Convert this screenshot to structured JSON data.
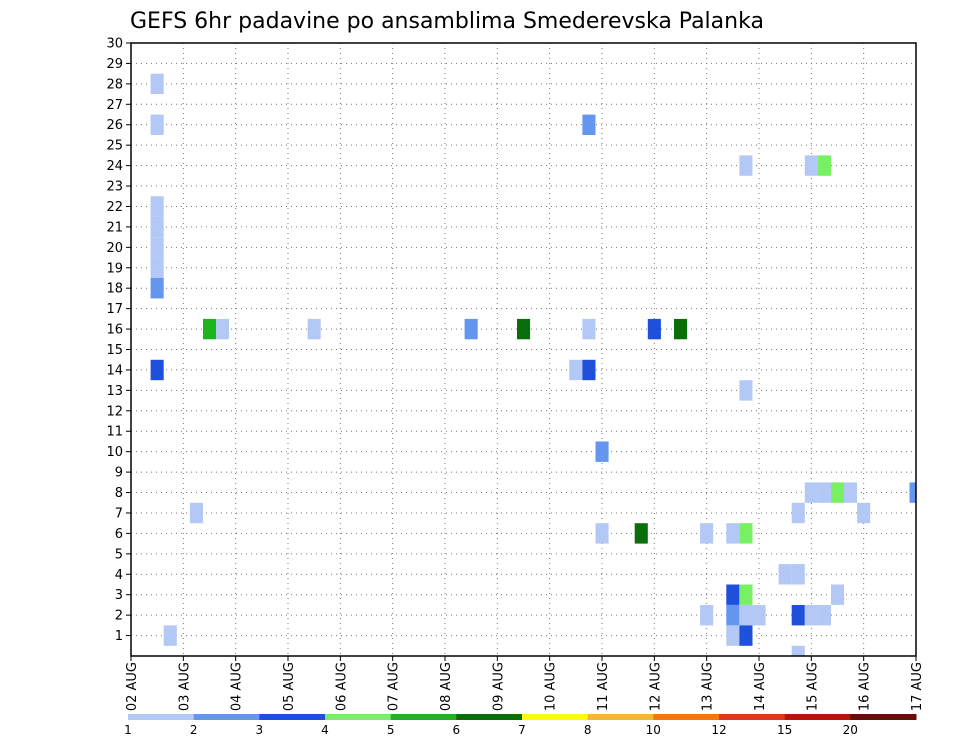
{
  "chart_data": {
    "type": "heatmap",
    "title": "GEFS 6hr padavine po ansamblima Smederevska Palanka",
    "xlabel": "",
    "ylabel": "",
    "x_tick_labels": [
      "02 AUG",
      "03 AUG",
      "04 AUG",
      "05 AUG",
      "06 AUG",
      "07 AUG",
      "08 AUG",
      "09 AUG",
      "10 AUG",
      "11 AUG",
      "12 AUG",
      "13 AUG",
      "14 AUG",
      "15 AUG",
      "16 AUG",
      "17 AUG"
    ],
    "y_tick_labels": [
      "1",
      "2",
      "3",
      "4",
      "5",
      "6",
      "7",
      "8",
      "9",
      "10",
      "11",
      "12",
      "13",
      "14",
      "15",
      "16",
      "17",
      "18",
      "19",
      "20",
      "21",
      "22",
      "23",
      "24",
      "25",
      "26",
      "27",
      "28",
      "29",
      "30"
    ],
    "xlim": [
      0,
      60
    ],
    "ylim": [
      0,
      30
    ],
    "grid": true,
    "colorbar": {
      "labels": [
        "1",
        "2",
        "3",
        "4",
        "5",
        "6",
        "7",
        "8",
        "10",
        "12",
        "15",
        "20"
      ],
      "colors": [
        "#b4c8f5",
        "#6496f0",
        "#1e50dc",
        "#78f064",
        "#1eb41e",
        "#0a6e0a",
        "#fafa14",
        "#fab43c",
        "#f07814",
        "#dc3c14",
        "#b4140a",
        "#6e0a0a"
      ]
    },
    "cells": [
      {
        "t": 2,
        "m": 28,
        "level": 1
      },
      {
        "t": 2,
        "m": 26,
        "level": 1
      },
      {
        "t": 2,
        "m": 22,
        "level": 1
      },
      {
        "t": 2,
        "m": 21,
        "level": 1
      },
      {
        "t": 2,
        "m": 20,
        "level": 1
      },
      {
        "t": 2,
        "m": 19,
        "level": 1
      },
      {
        "t": 2,
        "m": 18,
        "level": 2
      },
      {
        "t": 2,
        "m": 14,
        "level": 3
      },
      {
        "t": 3,
        "m": 1,
        "level": 1
      },
      {
        "t": 5,
        "m": 7,
        "level": 1
      },
      {
        "t": 6,
        "m": 16,
        "level": 5
      },
      {
        "t": 7,
        "m": 16,
        "level": 1
      },
      {
        "t": 14,
        "m": 16,
        "level": 1
      },
      {
        "t": 26,
        "m": 16,
        "level": 2
      },
      {
        "t": 30,
        "m": 16,
        "level": 6
      },
      {
        "t": 34,
        "m": 14,
        "level": 1
      },
      {
        "t": 35,
        "m": 26,
        "level": 2
      },
      {
        "t": 35,
        "m": 16,
        "level": 1
      },
      {
        "t": 35,
        "m": 14,
        "level": 3
      },
      {
        "t": 36,
        "m": 10,
        "level": 2
      },
      {
        "t": 36,
        "m": 6,
        "level": 1
      },
      {
        "t": 39,
        "m": 6,
        "level": 6
      },
      {
        "t": 40,
        "m": 16,
        "level": 3
      },
      {
        "t": 42,
        "m": 16,
        "level": 6
      },
      {
        "t": 44,
        "m": 6,
        "level": 1
      },
      {
        "t": 44,
        "m": 2,
        "level": 1
      },
      {
        "t": 46,
        "m": 6,
        "level": 1
      },
      {
        "t": 46,
        "m": 3,
        "level": 3
      },
      {
        "t": 46,
        "m": 2,
        "level": 2
      },
      {
        "t": 46,
        "m": 1,
        "level": 1
      },
      {
        "t": 47,
        "m": 24,
        "level": 1
      },
      {
        "t": 47,
        "m": 13,
        "level": 1
      },
      {
        "t": 47,
        "m": 6,
        "level": 4
      },
      {
        "t": 47,
        "m": 3,
        "level": 4
      },
      {
        "t": 47,
        "m": 2,
        "level": 1
      },
      {
        "t": 47,
        "m": 1,
        "level": 3
      },
      {
        "t": 48,
        "m": 2,
        "level": 1
      },
      {
        "t": 50,
        "m": 4,
        "level": 1
      },
      {
        "t": 51,
        "m": 4,
        "level": 1
      },
      {
        "t": 51,
        "m": 7,
        "level": 1
      },
      {
        "t": 51,
        "m": 2,
        "level": 3
      },
      {
        "t": 51,
        "m": 0,
        "level": 1
      },
      {
        "t": 52,
        "m": 24,
        "level": 1
      },
      {
        "t": 52,
        "m": 8,
        "level": 1
      },
      {
        "t": 52,
        "m": 2,
        "level": 1
      },
      {
        "t": 53,
        "m": 24,
        "level": 4
      },
      {
        "t": 53,
        "m": 8,
        "level": 1
      },
      {
        "t": 53,
        "m": 2,
        "level": 1
      },
      {
        "t": 54,
        "m": 8,
        "level": 4
      },
      {
        "t": 54,
        "m": 3,
        "level": 1
      },
      {
        "t": 55,
        "m": 8,
        "level": 1
      },
      {
        "t": 56,
        "m": 7,
        "level": 1
      },
      {
        "t": 60,
        "m": 8,
        "level": 2
      }
    ]
  }
}
